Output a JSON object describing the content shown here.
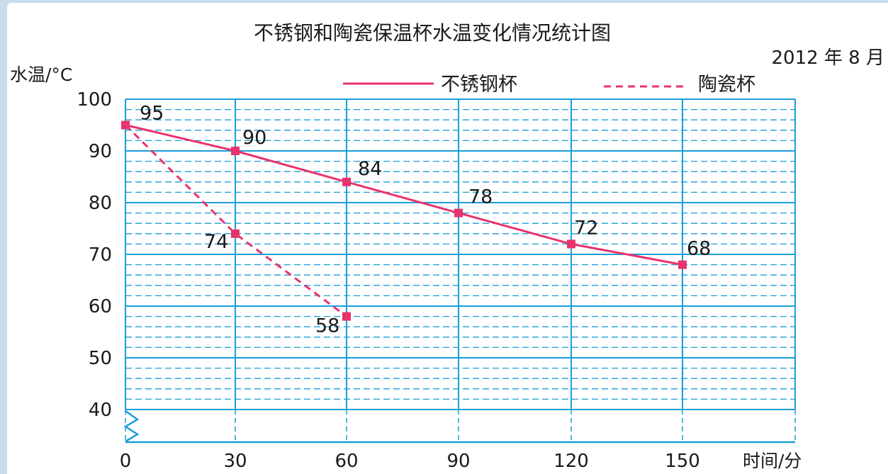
{
  "chart_data": {
    "type": "line",
    "title": "不锈钢和陶瓷保温杯水温变化情况统计图",
    "date_note": "2012 年 8 月",
    "ylabel": "水温/°C",
    "xlabel": "时间/分",
    "x_ticks": [
      0,
      30,
      60,
      90,
      120,
      150
    ],
    "y_ticks": [
      40,
      50,
      60,
      70,
      80,
      90,
      100
    ],
    "xlim": [
      0,
      150
    ],
    "ylim": [
      40,
      100
    ],
    "grid": true,
    "legend_position": "top-right",
    "series": [
      {
        "name": "不锈钢杯",
        "style": "solid",
        "color": "#e8336d",
        "x": [
          0,
          30,
          60,
          90,
          120,
          150
        ],
        "values": [
          95,
          90,
          84,
          78,
          72,
          68
        ],
        "labels": [
          "95",
          "90",
          "84",
          "78",
          "72",
          "68"
        ]
      },
      {
        "name": "陶瓷杯",
        "style": "dashed",
        "color": "#e8336d",
        "x": [
          0,
          30,
          60
        ],
        "values": [
          95,
          74,
          58
        ],
        "labels": [
          "",
          "74",
          "58"
        ]
      }
    ],
    "grid_color": "#1a9ed8"
  }
}
